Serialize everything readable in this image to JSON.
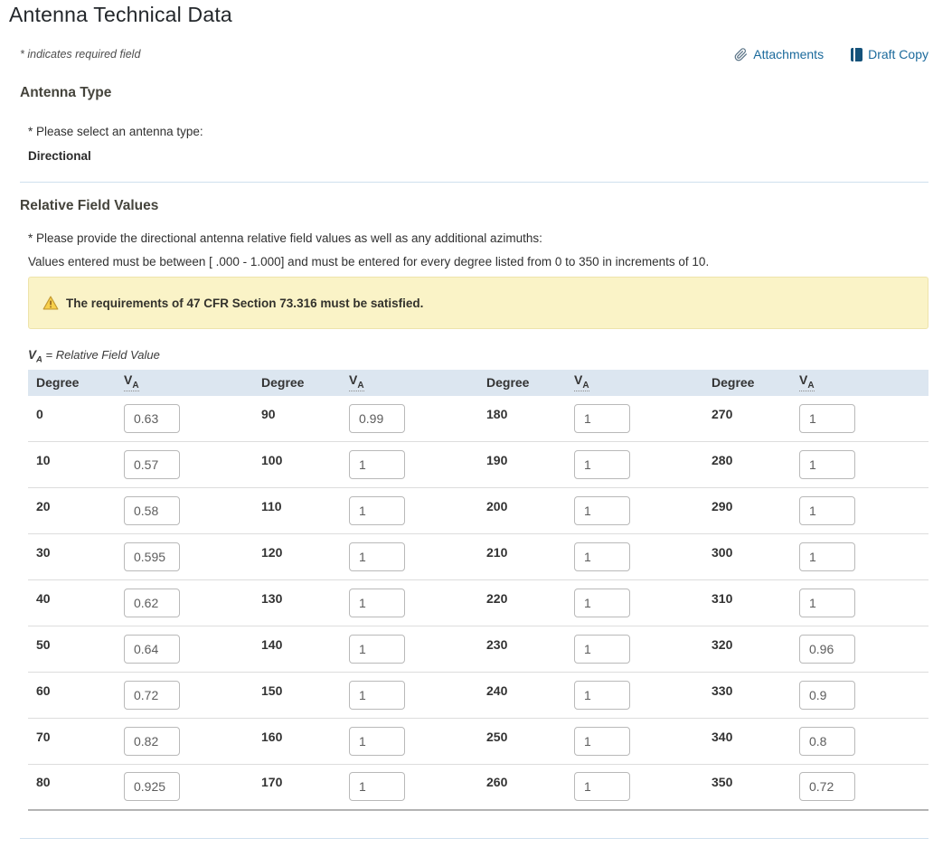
{
  "page": {
    "title": "Antenna Technical Data",
    "required_note": "* indicates required field"
  },
  "toolbar": {
    "attachments_label": "Attachments",
    "draft_copy_label": "Draft Copy"
  },
  "antenna_type": {
    "heading": "Antenna Type",
    "prompt": "* Please select an antenna type:",
    "value": "Directional"
  },
  "relative_field": {
    "heading": "Relative Field Values",
    "prompt": "* Please provide the directional antenna relative field values as well as any additional azimuths:",
    "instructions": "Values entered must be between [ .000 - 1.000] and must be entered for every degree listed from 0 to 350 in increments of 10.",
    "warning": "The requirements of 47 CFR Section 73.316 must be satisfied.",
    "legend_va_main": "V",
    "legend_va_sub": "A",
    "legend_text": "= Relative Field Value"
  },
  "table": {
    "groups": 4,
    "header": {
      "degree": "Degree",
      "va_main": "V",
      "va_sub": "A"
    },
    "rows": [
      [
        {
          "degree": "0",
          "value": "0.63"
        },
        {
          "degree": "90",
          "value": "0.99"
        },
        {
          "degree": "180",
          "value": "1"
        },
        {
          "degree": "270",
          "value": "1"
        }
      ],
      [
        {
          "degree": "10",
          "value": "0.57"
        },
        {
          "degree": "100",
          "value": "1"
        },
        {
          "degree": "190",
          "value": "1"
        },
        {
          "degree": "280",
          "value": "1"
        }
      ],
      [
        {
          "degree": "20",
          "value": "0.58"
        },
        {
          "degree": "110",
          "value": "1"
        },
        {
          "degree": "200",
          "value": "1"
        },
        {
          "degree": "290",
          "value": "1"
        }
      ],
      [
        {
          "degree": "30",
          "value": "0.595"
        },
        {
          "degree": "120",
          "value": "1"
        },
        {
          "degree": "210",
          "value": "1"
        },
        {
          "degree": "300",
          "value": "1"
        }
      ],
      [
        {
          "degree": "40",
          "value": "0.62"
        },
        {
          "degree": "130",
          "value": "1"
        },
        {
          "degree": "220",
          "value": "1"
        },
        {
          "degree": "310",
          "value": "1"
        }
      ],
      [
        {
          "degree": "50",
          "value": "0.64"
        },
        {
          "degree": "140",
          "value": "1"
        },
        {
          "degree": "230",
          "value": "1"
        },
        {
          "degree": "320",
          "value": "0.96"
        }
      ],
      [
        {
          "degree": "60",
          "value": "0.72"
        },
        {
          "degree": "150",
          "value": "1"
        },
        {
          "degree": "240",
          "value": "1"
        },
        {
          "degree": "330",
          "value": "0.9"
        }
      ],
      [
        {
          "degree": "70",
          "value": "0.82"
        },
        {
          "degree": "160",
          "value": "1"
        },
        {
          "degree": "250",
          "value": "1"
        },
        {
          "degree": "340",
          "value": "0.8"
        }
      ],
      [
        {
          "degree": "80",
          "value": "0.925"
        },
        {
          "degree": "170",
          "value": "1"
        },
        {
          "degree": "260",
          "value": "1"
        },
        {
          "degree": "350",
          "value": "0.72"
        }
      ]
    ]
  },
  "colors": {
    "link_blue": "#1b6a9c",
    "warning_bg": "#faf3c7",
    "warning_icon": "#f2c33c",
    "table_header_bg": "#dce6f0",
    "divider_blue": "#cfe0ee",
    "draft_icon_blue": "#14527a"
  }
}
